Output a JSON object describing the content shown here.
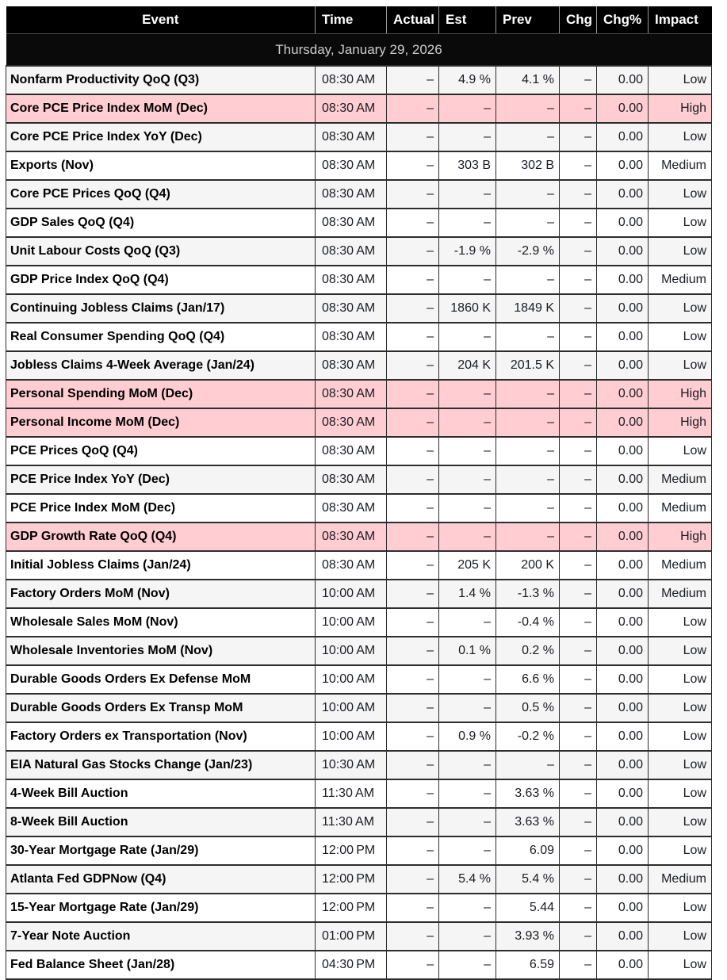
{
  "colors": {
    "header_bg": "#000000",
    "header_text": "#ffffff",
    "date_row_bg": "#0a0a0a",
    "date_row_text": "#cdcdcd",
    "stripe_row_bg": "#f5f5f5",
    "high_impact_row_bg": "#ffcdd2",
    "border": "#2d2d2d",
    "event_text": "#000000"
  },
  "table": {
    "date_header": "Thursday, January 29, 2026",
    "columns": [
      {
        "key": "event",
        "label": "Event"
      },
      {
        "key": "time",
        "label": "Time"
      },
      {
        "key": "actual",
        "label": "Actual"
      },
      {
        "key": "est",
        "label": "Est"
      },
      {
        "key": "prev",
        "label": "Prev"
      },
      {
        "key": "chg",
        "label": "Chg"
      },
      {
        "key": "chg_pct",
        "label": "Chg%"
      },
      {
        "key": "impact",
        "label": "Impact"
      }
    ],
    "rows": [
      {
        "event": "Nonfarm Productivity QoQ (Q3)",
        "time": "08:30 AM",
        "actual": "–",
        "est": "4.9 %",
        "prev": "4.1 %",
        "chg": "–",
        "chg_pct": "0.00",
        "impact": "Low",
        "high": false
      },
      {
        "event": "Core PCE Price Index MoM (Dec)",
        "time": "08:30 AM",
        "actual": "–",
        "est": "–",
        "prev": "–",
        "chg": "–",
        "chg_pct": "0.00",
        "impact": "High",
        "high": true
      },
      {
        "event": "Core PCE Price Index YoY (Dec)",
        "time": "08:30 AM",
        "actual": "–",
        "est": "–",
        "prev": "–",
        "chg": "–",
        "chg_pct": "0.00",
        "impact": "Low",
        "high": false
      },
      {
        "event": "Exports (Nov)",
        "time": "08:30 AM",
        "actual": "–",
        "est": "303 B",
        "prev": "302 B",
        "chg": "–",
        "chg_pct": "0.00",
        "impact": "Medium",
        "high": false
      },
      {
        "event": "Core PCE Prices QoQ (Q4)",
        "time": "08:30 AM",
        "actual": "–",
        "est": "–",
        "prev": "–",
        "chg": "–",
        "chg_pct": "0.00",
        "impact": "Low",
        "high": false
      },
      {
        "event": "GDP Sales QoQ (Q4)",
        "time": "08:30 AM",
        "actual": "–",
        "est": "–",
        "prev": "–",
        "chg": "–",
        "chg_pct": "0.00",
        "impact": "Low",
        "high": false
      },
      {
        "event": "Unit Labour Costs QoQ (Q3)",
        "time": "08:30 AM",
        "actual": "–",
        "est": "-1.9 %",
        "prev": "-2.9 %",
        "chg": "–",
        "chg_pct": "0.00",
        "impact": "Low",
        "high": false
      },
      {
        "event": "GDP Price Index QoQ (Q4)",
        "time": "08:30 AM",
        "actual": "–",
        "est": "–",
        "prev": "–",
        "chg": "–",
        "chg_pct": "0.00",
        "impact": "Medium",
        "high": false
      },
      {
        "event": "Continuing Jobless Claims (Jan/17)",
        "time": "08:30 AM",
        "actual": "–",
        "est": "1860 K",
        "prev": "1849 K",
        "chg": "–",
        "chg_pct": "0.00",
        "impact": "Low",
        "high": false
      },
      {
        "event": "Real Consumer Spending QoQ (Q4)",
        "time": "08:30 AM",
        "actual": "–",
        "est": "–",
        "prev": "–",
        "chg": "–",
        "chg_pct": "0.00",
        "impact": "Low",
        "high": false
      },
      {
        "event": "Jobless Claims 4-Week Average (Jan/24)",
        "time": "08:30 AM",
        "actual": "–",
        "est": "204 K",
        "prev": "201.5 K",
        "chg": "–",
        "chg_pct": "0.00",
        "impact": "Low",
        "high": false
      },
      {
        "event": "Personal Spending MoM (Dec)",
        "time": "08:30 AM",
        "actual": "–",
        "est": "–",
        "prev": "–",
        "chg": "–",
        "chg_pct": "0.00",
        "impact": "High",
        "high": true
      },
      {
        "event": "Personal Income MoM (Dec)",
        "time": "08:30 AM",
        "actual": "–",
        "est": "–",
        "prev": "–",
        "chg": "–",
        "chg_pct": "0.00",
        "impact": "High",
        "high": true
      },
      {
        "event": "PCE Prices QoQ (Q4)",
        "time": "08:30 AM",
        "actual": "–",
        "est": "–",
        "prev": "–",
        "chg": "–",
        "chg_pct": "0.00",
        "impact": "Low",
        "high": false
      },
      {
        "event": "PCE Price Index YoY (Dec)",
        "time": "08:30 AM",
        "actual": "–",
        "est": "–",
        "prev": "–",
        "chg": "–",
        "chg_pct": "0.00",
        "impact": "Medium",
        "high": false
      },
      {
        "event": "PCE Price Index MoM (Dec)",
        "time": "08:30 AM",
        "actual": "–",
        "est": "–",
        "prev": "–",
        "chg": "–",
        "chg_pct": "0.00",
        "impact": "Medium",
        "high": false
      },
      {
        "event": "GDP Growth Rate QoQ (Q4)",
        "time": "08:30 AM",
        "actual": "–",
        "est": "–",
        "prev": "–",
        "chg": "–",
        "chg_pct": "0.00",
        "impact": "High",
        "high": true
      },
      {
        "event": "Initial Jobless Claims (Jan/24)",
        "time": "08:30 AM",
        "actual": "–",
        "est": "205 K",
        "prev": "200 K",
        "chg": "–",
        "chg_pct": "0.00",
        "impact": "Medium",
        "high": false
      },
      {
        "event": "Factory Orders MoM (Nov)",
        "time": "10:00 AM",
        "actual": "–",
        "est": "1.4 %",
        "prev": "-1.3 %",
        "chg": "–",
        "chg_pct": "0.00",
        "impact": "Medium",
        "high": false
      },
      {
        "event": "Wholesale Sales MoM (Nov)",
        "time": "10:00 AM",
        "actual": "–",
        "est": "–",
        "prev": "-0.4 %",
        "chg": "–",
        "chg_pct": "0.00",
        "impact": "Low",
        "high": false
      },
      {
        "event": "Wholesale Inventories MoM (Nov)",
        "time": "10:00 AM",
        "actual": "–",
        "est": "0.1 %",
        "prev": "0.2 %",
        "chg": "–",
        "chg_pct": "0.00",
        "impact": "Low",
        "high": false
      },
      {
        "event": "Durable Goods Orders Ex Defense MoM",
        "time": "10:00 AM",
        "actual": "–",
        "est": "–",
        "prev": "6.6 %",
        "chg": "–",
        "chg_pct": "0.00",
        "impact": "Low",
        "high": false
      },
      {
        "event": "Durable Goods Orders Ex Transp MoM",
        "time": "10:00 AM",
        "actual": "–",
        "est": "–",
        "prev": "0.5 %",
        "chg": "–",
        "chg_pct": "0.00",
        "impact": "Low",
        "high": false
      },
      {
        "event": "Factory Orders ex Transportation (Nov)",
        "time": "10:00 AM",
        "actual": "–",
        "est": "0.9 %",
        "prev": "-0.2 %",
        "chg": "–",
        "chg_pct": "0.00",
        "impact": "Low",
        "high": false
      },
      {
        "event": "EIA Natural Gas Stocks Change (Jan/23)",
        "time": "10:30 AM",
        "actual": "–",
        "est": "–",
        "prev": "–",
        "chg": "–",
        "chg_pct": "0.00",
        "impact": "Low",
        "high": false
      },
      {
        "event": "4-Week Bill Auction",
        "time": "11:30 AM",
        "actual": "–",
        "est": "–",
        "prev": "3.63 %",
        "chg": "–",
        "chg_pct": "0.00",
        "impact": "Low",
        "high": false
      },
      {
        "event": "8-Week Bill Auction",
        "time": "11:30 AM",
        "actual": "–",
        "est": "–",
        "prev": "3.63 %",
        "chg": "–",
        "chg_pct": "0.00",
        "impact": "Low",
        "high": false
      },
      {
        "event": "30-Year Mortgage Rate (Jan/29)",
        "time": "12:00 PM",
        "actual": "–",
        "est": "–",
        "prev": "6.09",
        "chg": "–",
        "chg_pct": "0.00",
        "impact": "Low",
        "high": false
      },
      {
        "event": "Atlanta Fed GDPNow (Q4)",
        "time": "12:00 PM",
        "actual": "–",
        "est": "5.4 %",
        "prev": "5.4 %",
        "chg": "–",
        "chg_pct": "0.00",
        "impact": "Medium",
        "high": false
      },
      {
        "event": "15-Year Mortgage Rate (Jan/29)",
        "time": "12:00 PM",
        "actual": "–",
        "est": "–",
        "prev": "5.44",
        "chg": "–",
        "chg_pct": "0.00",
        "impact": "Low",
        "high": false
      },
      {
        "event": "7-Year Note Auction",
        "time": "01:00 PM",
        "actual": "–",
        "est": "–",
        "prev": "3.93 %",
        "chg": "–",
        "chg_pct": "0.00",
        "impact": "Low",
        "high": false
      },
      {
        "event": "Fed Balance Sheet (Jan/28)",
        "time": "04:30 PM",
        "actual": "–",
        "est": "–",
        "prev": "6.59",
        "chg": "–",
        "chg_pct": "0.00",
        "impact": "Low",
        "high": false
      }
    ]
  }
}
